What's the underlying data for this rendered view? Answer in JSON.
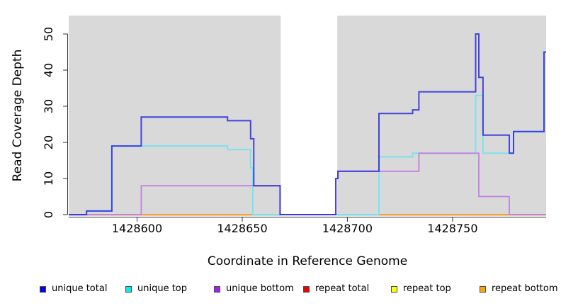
{
  "chart_data": {
    "type": "line",
    "subtype": "step",
    "title": "",
    "xlabel": "Coordinate in Reference Genome",
    "ylabel": "Read Coverage Depth",
    "xlim": [
      1428567.5,
      1428794.5
    ],
    "ylim": [
      0,
      55
    ],
    "grid": false,
    "panel_background": "#D9D9D9",
    "axis_color": "#333333",
    "masked_region": {
      "from": 1428668.3,
      "to": 1428695.2,
      "color": "#FFFFFF"
    },
    "x_ticks": [
      {
        "value": 1428600,
        "label": "1428600"
      },
      {
        "value": 1428650,
        "label": "1428650"
      },
      {
        "value": 1428700,
        "label": "1428700"
      },
      {
        "value": 1428750,
        "label": "1428750"
      }
    ],
    "y_ticks": [
      {
        "value": 0,
        "label": "0"
      },
      {
        "value": 10,
        "label": "10"
      },
      {
        "value": 20,
        "label": "20"
      },
      {
        "value": 30,
        "label": "30"
      },
      {
        "value": 40,
        "label": "40"
      },
      {
        "value": 50,
        "label": "50"
      }
    ],
    "series": [
      {
        "name": "repeat-total",
        "label": "repeat total",
        "color": "#DC3A3A",
        "width": 1.8,
        "opacity": 1,
        "points": [
          [
            1428567.5,
            0
          ]
        ]
      },
      {
        "name": "repeat-top",
        "label": "repeat top",
        "color": "#F2E000",
        "width": 1.8,
        "opacity": 1,
        "points": [
          [
            1428567.5,
            0
          ]
        ]
      },
      {
        "name": "repeat-bottom",
        "label": "repeat bottom",
        "color": "#FF9C20",
        "width": 1.8,
        "opacity": 1,
        "points": [
          [
            1428567.5,
            0
          ]
        ]
      },
      {
        "name": "unique-top",
        "label": "unique top",
        "color": "#7BE2EE",
        "width": 2,
        "opacity": 1,
        "points": [
          [
            1428567.5,
            0
          ],
          [
            1428576,
            1
          ],
          [
            1428588,
            19
          ],
          [
            1428643,
            18
          ],
          [
            1428654,
            13
          ],
          [
            1428655,
            0
          ],
          [
            1428715,
            16
          ],
          [
            1428731,
            17
          ],
          [
            1428761,
            33
          ],
          [
            1428764.5,
            17
          ],
          [
            1428779,
            23
          ],
          [
            1428793.5,
            45
          ]
        ]
      },
      {
        "name": "unique-bottom",
        "label": "unique bottom",
        "color": "#C47FE2",
        "width": 1.8,
        "opacity": 1,
        "points": [
          [
            1428567.5,
            0
          ],
          [
            1428602,
            8
          ],
          [
            1428668,
            0
          ],
          [
            1428694.5,
            10
          ],
          [
            1428695.5,
            12
          ],
          [
            1428734,
            17
          ],
          [
            1428762.5,
            5
          ],
          [
            1428777,
            0
          ]
        ]
      },
      {
        "name": "unique-total",
        "label": "unique total",
        "color": "#2828DE",
        "width": 2,
        "opacity": 0.85,
        "points": [
          [
            1428567.5,
            0
          ],
          [
            1428576,
            1
          ],
          [
            1428588,
            19
          ],
          [
            1428602,
            27
          ],
          [
            1428643,
            26
          ],
          [
            1428654,
            21
          ],
          [
            1428655.5,
            8
          ],
          [
            1428668,
            0
          ],
          [
            1428694.5,
            10
          ],
          [
            1428695.5,
            12
          ],
          [
            1428715,
            28
          ],
          [
            1428731,
            29
          ],
          [
            1428734,
            34
          ],
          [
            1428761,
            50
          ],
          [
            1428762.5,
            38
          ],
          [
            1428764.5,
            22
          ],
          [
            1428777,
            17
          ],
          [
            1428779,
            23
          ],
          [
            1428793.5,
            45
          ]
        ]
      }
    ]
  },
  "legend": {
    "items": [
      {
        "label": "unique total",
        "color": "#0000EE"
      },
      {
        "label": "unique top",
        "color": "#00EEEE"
      },
      {
        "label": "unique bottom",
        "color": "#A020F0"
      },
      {
        "label": "repeat total",
        "color": "#EE0000"
      },
      {
        "label": "repeat top",
        "color": "#FFFF00"
      },
      {
        "label": "repeat bottom",
        "color": "#FFA500"
      }
    ]
  }
}
